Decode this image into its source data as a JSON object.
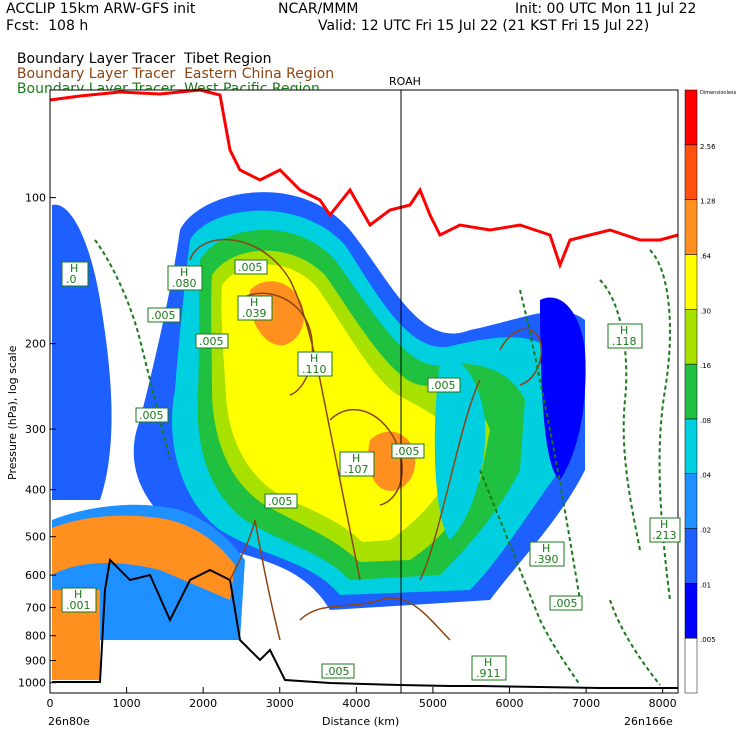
{
  "header": {
    "model": "ACCLIP 15km ARW-GFS init",
    "org": "NCAR/MMM",
    "init": "Init: 00 UTC Mon 11 Jul 22",
    "fcst": "Fcst:  108 h",
    "valid": "Valid: 12 UTC Fri 15 Jul 22 (21 KST Fri 15 Jul 22)"
  },
  "legend": [
    {
      "label": "Boundary Layer Tracer",
      "region": "Tibet Region",
      "color": "#000000"
    },
    {
      "label": "Boundary Layer Tracer",
      "region": "Eastern China Region",
      "color": "#8b4513"
    },
    {
      "label": "Boundary Layer Tracer",
      "region": "West Pacific Region",
      "color": "#1a7a1a"
    }
  ],
  "chart_data": {
    "type": "heatmap",
    "xlabel": "Distance (km)",
    "ylabel": "Pressure (hPa), log scale",
    "x_ticks": [
      "0",
      "1000",
      "2000",
      "3000",
      "4000",
      "5000",
      "6000",
      "7000",
      "8000"
    ],
    "y_ticks": [
      "100",
      "200",
      "300",
      "400",
      "500",
      "600",
      "700",
      "800",
      "900",
      "1000"
    ],
    "x_start_label": "26n80e",
    "x_end_label": "26n166e",
    "marker_label": "ROAH",
    "xlim": [
      0,
      8200
    ],
    "ylim": [
      1050,
      60
    ],
    "y_scale": "log",
    "colorbar": {
      "labels": [
        ".005",
        ".01",
        ".02",
        ".04",
        ".08",
        ".16",
        ".30",
        ".64",
        "1.28",
        "2.56",
        "Dimensionless"
      ],
      "colors": [
        "#ffffff",
        "#0000ff",
        "#1f5fff",
        "#1e90ff",
        "#00cfe0",
        "#20c040",
        "#a8e000",
        "#ffff00",
        "#ff9020",
        "#ff5010",
        "#ff0000"
      ]
    },
    "labels_H": [
      {
        "text": "H",
        "val": ".0"
      },
      {
        "text": "H",
        "val": ".080"
      },
      {
        "text": "H",
        "val": ".039"
      },
      {
        "text": "H",
        "val": ".110"
      },
      {
        "text": "H",
        "val": ".107"
      },
      {
        "text": "H",
        "val": ".118"
      },
      {
        "text": "H",
        "val": ".213"
      },
      {
        "text": "H",
        "val": ".390"
      },
      {
        "text": "H",
        "val": ".911"
      },
      {
        "text": "H",
        "val": ".001"
      }
    ],
    "contour_labels": [
      ".005",
      ".005",
      ".005",
      ".005",
      ".005",
      ".005",
      ".005",
      ".005",
      ".005"
    ]
  }
}
